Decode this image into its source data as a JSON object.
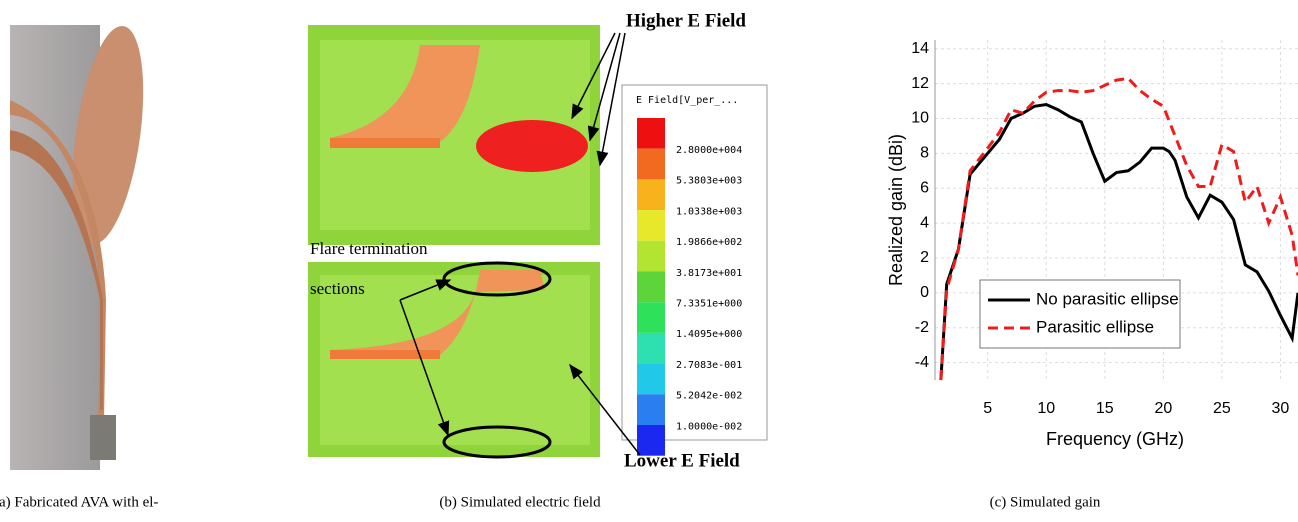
{
  "panel_a": {
    "caption": "(a) Fabricated AVA with el-"
  },
  "panel_b": {
    "caption": "(b) Simulated electric field",
    "annotations": {
      "higher": "Higher E Field",
      "flare_line1": "Flare  termination",
      "flare_line2": "sections",
      "lower": "Lower E Field"
    },
    "colorbar": {
      "title": "E Field[V_per_...",
      "labels": [
        "2.8000e+004",
        "5.3803e+003",
        "1.0338e+003",
        "1.9866e+002",
        "3.8173e+001",
        "7.3351e+000",
        "1.4095e+000",
        "2.7083e-001",
        "5.2042e-002",
        "1.0000e-002"
      ]
    }
  },
  "chart_data": {
    "type": "line",
    "caption": "(c) Simulated gain",
    "x_label": "Frequency (GHz)",
    "y_label": "Realized gain (dBi)",
    "xlim": [
      0.5,
      31.5
    ],
    "ylim": [
      -5,
      14.5
    ],
    "xticks": [
      5,
      10,
      15,
      20,
      25,
      30
    ],
    "yticks": [
      -4,
      -2,
      0,
      2,
      4,
      6,
      8,
      10,
      12,
      14
    ],
    "grid": true,
    "legend": "lower-left",
    "series": [
      {
        "name": "No parasitic ellipse",
        "color": "#000000",
        "dash": "solid",
        "x": [
          1,
          1.5,
          2.5,
          3.5,
          5,
          6,
          7,
          8,
          9,
          10,
          11,
          12,
          13,
          14,
          15,
          16,
          17,
          18,
          19,
          20,
          20.5,
          21,
          22,
          23,
          24,
          25,
          26,
          27,
          28,
          29,
          30,
          31,
          31.5
        ],
        "values": [
          -5,
          0.5,
          2.5,
          6.8,
          8,
          8.8,
          10,
          10.3,
          10.7,
          10.8,
          10.5,
          10.1,
          9.8,
          8,
          6.4,
          6.9,
          7,
          7.5,
          8.3,
          8.3,
          8.1,
          7.6,
          5.5,
          4.3,
          5.6,
          5.2,
          4.2,
          1.6,
          1.2,
          0.1,
          -1.3,
          -2.6,
          0
        ]
      },
      {
        "name": "Parasitic ellipse",
        "color": "#ee1c1c",
        "dash": "dashed",
        "x": [
          1,
          1.5,
          2.5,
          3.5,
          5,
          6,
          7,
          8,
          9,
          10,
          11,
          12,
          13,
          14,
          15,
          16,
          17,
          18,
          19,
          20,
          21,
          22,
          23,
          24,
          25,
          26,
          27,
          28,
          29,
          30,
          31,
          31.5
        ],
        "values": [
          -5,
          0.2,
          2.5,
          7,
          8.3,
          9.2,
          10.5,
          10.3,
          11,
          11.5,
          11.6,
          11.6,
          11.5,
          11.6,
          11.9,
          12.2,
          12.3,
          11.6,
          11.1,
          10.7,
          9,
          7.3,
          6.1,
          6.1,
          8.5,
          8.1,
          5.2,
          6.1,
          4,
          5.5,
          3.3,
          1
        ]
      }
    ]
  }
}
